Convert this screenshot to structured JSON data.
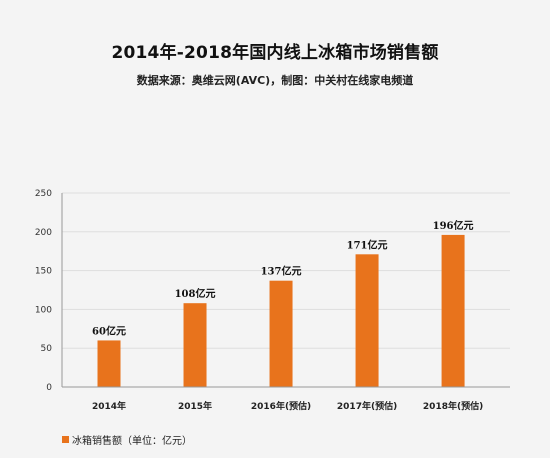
{
  "title": "2014年-2018年国内线上冰箱市场销售额",
  "subtitle": "数据来源：奥维云网(AVC)，制图：中关村在线家电频道",
  "colors": {
    "bar": "#e8731c",
    "grid": "#dedede",
    "axis": "#999999"
  },
  "chart_data": {
    "type": "bar",
    "title": "2014年-2018年国内线上冰箱市场销售额",
    "xlabel": "",
    "ylabel": "",
    "ylim": [
      0,
      250
    ],
    "yticks": [
      0,
      50,
      100,
      150,
      200,
      250
    ],
    "grid": true,
    "legend_position": "bottom-left",
    "categories": [
      "2014年",
      "2015年",
      "2016年(预估)",
      "2017年(预估)",
      "2018年(预估)"
    ],
    "series": [
      {
        "name": "冰箱销售额（单位：亿元）",
        "values": [
          60,
          108,
          137,
          171,
          196
        ],
        "data_labels": [
          "60亿元",
          "108亿元",
          "137亿元",
          "171亿元",
          "196亿元"
        ]
      }
    ]
  }
}
